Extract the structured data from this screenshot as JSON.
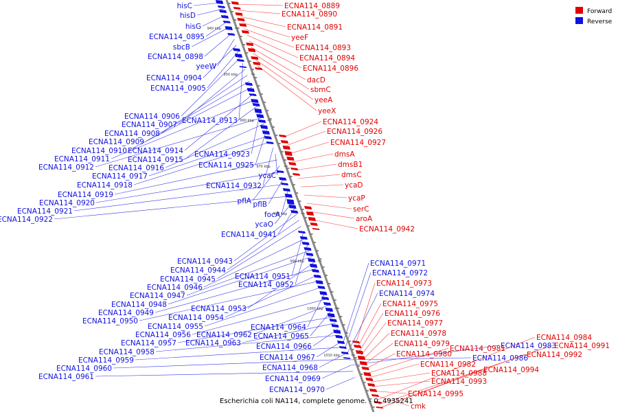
{
  "caption": "Escherichia coli NA114, complete genome. - 0..4935241",
  "colors": {
    "forward": "#e00000",
    "reverse": "#1010e0",
    "backbone": "#888888",
    "forward_line": "#ff3030",
    "reverse_line": "#3535e8"
  },
  "legend": [
    {
      "name": "Forward",
      "color": "#e00000"
    },
    {
      "name": "Reverse",
      "color": "#1010e0"
    }
  ],
  "scale_ticks": [
    "940 kbp",
    "950 kbp",
    "960 kbp",
    "970 kbp",
    "980 kbp",
    "990 kbp",
    "1000 kbp",
    "1010 kbp"
  ],
  "reverse_genes": [
    "hisC",
    "hisD",
    "hisG",
    "ECNA114_0895",
    "sbcB",
    "ECNA114_0898",
    "yeeW",
    "ECNA114_0904",
    "ECNA114_0905",
    "ECNA114_0906",
    "ECNA114_0913",
    "ECNA114_0907",
    "ECNA114_0908",
    "ECNA114_0909",
    "ECNA114_0910",
    "ECNA114_0914",
    "ECNA114_0911",
    "ECNA114_0915",
    "ECNA114_0923",
    "ECNA114_0912",
    "ECNA114_0916",
    "ECNA114_0925",
    "ECNA114_0917",
    "ECNA114_0918",
    "ECNA114_0932",
    "ycaC",
    "ECNA114_0919",
    "pflA",
    "ECNA114_0920",
    "pflB",
    "ECNA114_0921",
    "focA",
    "ECNA114_0922",
    "ycaO",
    "ECNA114_0941",
    "ECNA114_0943",
    "ECNA114_0944",
    "ECNA114_0945",
    "ECNA114_0951",
    "ECNA114_0946",
    "ECNA114_0952",
    "ECNA114_0947",
    "ECNA114_0948",
    "ECNA114_0953",
    "ECNA114_0949",
    "ECNA114_0954",
    "ECNA114_0950",
    "ECNA114_0955",
    "ECNA114_0964",
    "ECNA114_0956",
    "ECNA114_0962",
    "ECNA114_0965",
    "ECNA114_0957",
    "ECNA114_0963",
    "ECNA114_0966",
    "ECNA114_0958",
    "ECNA114_0967",
    "ECNA114_0959",
    "ECNA114_0968",
    "ECNA114_0960",
    "ECNA114_0969",
    "ECNA114_0961",
    "ECNA114_0970",
    "ECNA114_0971",
    "ECNA114_0972",
    "ECNA114_0974",
    "ECNA114_0986",
    "ECNA114_0983"
  ],
  "forward_genes": [
    "ECNA114_0889",
    "ECNA114_0890",
    "ECNA114_0891",
    "yeeF",
    "ECNA114_0893",
    "ECNA114_0894",
    "ECNA114_0896",
    "dacD",
    "sbmC",
    "yeeA",
    "yeeX",
    "ECNA114_0924",
    "ECNA114_0926",
    "ECNA114_0927",
    "dmsA",
    "dmsB1",
    "dmsC",
    "ycaD",
    "ycaP",
    "serC",
    "aroA",
    "ECNA114_0942",
    "ECNA114_0973",
    "ECNA114_0975",
    "ECNA114_0976",
    "ECNA114_0977",
    "ECNA114_0978",
    "ECNA114_0979",
    "ECNA114_0980",
    "ECNA114_0981",
    "ECNA114_0982",
    "ECNA114_0988",
    "ECNA114_0993",
    "ECNA114_0995",
    "cmk",
    "ECNA114_0984",
    "ECNA114_0991",
    "ECNA114_0992",
    "ECNA114_0994"
  ]
}
